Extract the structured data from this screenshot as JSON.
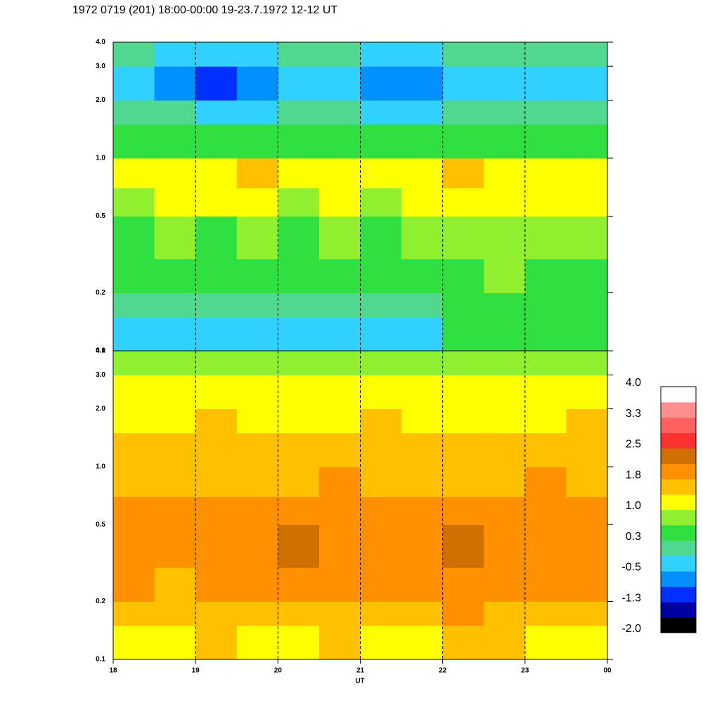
{
  "chart_data": {
    "type": "heatmap",
    "title": "1972 0719 (201) 18:00-00:00 19-23.7.1972  12-12 UT",
    "x_label": "UT",
    "xlim": [
      18,
      24
    ],
    "xticks": [
      18,
      19,
      20,
      21,
      22,
      23,
      {
        "value": 24,
        "label": "00"
      }
    ],
    "ylim": [
      0.1,
      4.0
    ],
    "y_scale": "log",
    "yticks": [
      0.1,
      0.2,
      0.5,
      {
        "value": 1.0,
        "label": "1.0"
      },
      {
        "value": 2.0,
        "label": "2.0"
      },
      {
        "value": 3.0,
        "label": "3.0"
      },
      {
        "value": 4.0,
        "label": "4.0"
      }
    ],
    "time_edges": [
      18,
      18.5,
      19,
      19.5,
      20,
      20.5,
      21,
      21.5,
      22,
      22.5,
      23,
      23.5,
      24
    ],
    "freq_edges": [
      0.1,
      0.15,
      0.2,
      0.3,
      0.5,
      0.7,
      1.0,
      1.5,
      2.0,
      3.0,
      4.0
    ],
    "zlim": [
      -2.0,
      4.0
    ],
    "colors": [
      "#000000",
      "#0000a0",
      "#0030ff",
      "#0090ff",
      "#30d0ff",
      "#50d890",
      "#30e040",
      "#90f030",
      "#ffff00",
      "#ffc000",
      "#ff9000",
      "#d07000",
      "#ff3030",
      "#ff6060",
      "#ff9090",
      "#ffffff"
    ],
    "colorbar_ticks": [
      {
        "value": -2.0,
        "label": "-2.0"
      },
      {
        "value": -1.25,
        "label": "-1.3"
      },
      {
        "value": -0.5,
        "label": "-0.5"
      },
      {
        "value": 0.25,
        "label": "0.3"
      },
      {
        "value": 1.0,
        "label": "1.0"
      },
      {
        "value": 1.75,
        "label": "1.8"
      },
      {
        "value": 2.5,
        "label": "2.5"
      },
      {
        "value": 3.25,
        "label": "3.3"
      },
      {
        "value": 4.0,
        "label": "4.0"
      }
    ],
    "panels": [
      {
        "z": [
          [
            -0.4,
            -0.3,
            -0.4,
            -0.2,
            -0.3,
            -0.2,
            -0.4,
            -0.2,
            0.4,
            0.5,
            0.4,
            0.5
          ],
          [
            0.0,
            0.1,
            -0.1,
            0.1,
            0.0,
            0.2,
            0.0,
            0.1,
            0.5,
            0.6,
            0.5,
            0.6
          ],
          [
            0.4,
            0.5,
            0.4,
            0.6,
            0.5,
            0.4,
            0.5,
            0.4,
            0.6,
            0.7,
            0.6,
            0.6
          ],
          [
            0.6,
            0.7,
            0.6,
            0.7,
            0.6,
            0.7,
            0.6,
            0.7,
            0.7,
            0.8,
            0.7,
            0.8
          ],
          [
            0.9,
            1.0,
            1.1,
            1.1,
            0.9,
            1.0,
            0.9,
            1.0,
            1.1,
            1.0,
            1.1,
            1.2
          ],
          [
            1.2,
            1.3,
            1.2,
            1.4,
            1.3,
            1.2,
            1.1,
            1.2,
            1.4,
            1.3,
            1.2,
            1.2
          ],
          [
            0.5,
            0.4,
            0.3,
            0.4,
            0.5,
            0.3,
            0.4,
            0.3,
            0.5,
            0.4,
            0.5,
            0.4
          ],
          [
            -0.1,
            0.1,
            -0.4,
            -0.2,
            0.0,
            -0.1,
            -0.3,
            -0.5,
            0.0,
            0.1,
            0.0,
            0.2
          ],
          [
            -0.3,
            -0.6,
            -0.9,
            -0.6,
            -0.4,
            -0.5,
            -0.6,
            -0.8,
            -0.4,
            -0.3,
            -0.5,
            -0.2
          ],
          [
            0.1,
            -0.2,
            -0.4,
            -0.2,
            0.0,
            -0.1,
            -0.3,
            -0.2,
            0.0,
            0.1,
            0.0,
            0.1
          ]
        ]
      },
      {
        "z": [
          [
            1.2,
            1.1,
            1.4,
            1.2,
            1.3,
            1.4,
            1.3,
            1.2,
            1.5,
            1.4,
            1.3,
            1.2
          ],
          [
            1.6,
            1.5,
            1.7,
            1.6,
            1.7,
            1.6,
            1.5,
            1.6,
            1.8,
            1.7,
            1.6,
            1.7
          ],
          [
            1.8,
            1.7,
            1.9,
            1.8,
            1.9,
            1.8,
            1.8,
            1.9,
            2.0,
            1.9,
            1.8,
            1.9
          ],
          [
            2.1,
            2.0,
            2.1,
            2.0,
            2.2,
            2.1,
            2.0,
            2.1,
            2.2,
            2.1,
            2.1,
            2.0
          ],
          [
            2.0,
            1.9,
            1.8,
            1.9,
            2.0,
            1.9,
            1.8,
            1.9,
            2.0,
            1.9,
            1.9,
            1.8
          ],
          [
            1.7,
            1.6,
            1.7,
            1.6,
            1.7,
            1.8,
            1.7,
            1.6,
            1.7,
            1.6,
            1.8,
            1.7
          ],
          [
            1.5,
            1.4,
            1.5,
            1.6,
            1.5,
            1.4,
            1.5,
            1.6,
            1.5,
            1.4,
            1.5,
            1.5
          ],
          [
            1.3,
            1.2,
            1.4,
            1.3,
            1.2,
            1.3,
            1.4,
            1.3,
            1.2,
            1.3,
            1.3,
            1.4
          ],
          [
            1.1,
            1.0,
            1.2,
            1.1,
            1.0,
            1.1,
            1.2,
            1.1,
            1.0,
            1.1,
            1.1,
            1.0
          ],
          [
            0.7,
            0.8,
            0.7,
            0.9,
            0.8,
            0.7,
            0.8,
            0.9,
            0.7,
            0.8,
            0.8,
            0.7
          ]
        ]
      }
    ]
  }
}
